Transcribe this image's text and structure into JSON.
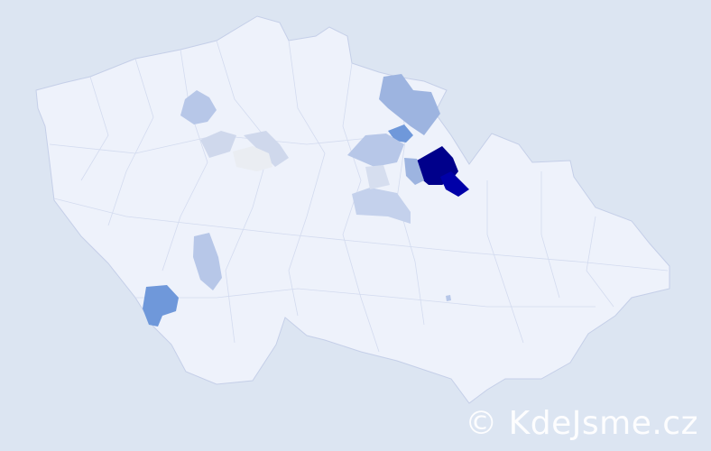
{
  "map": {
    "background_color": "#dce5f2",
    "base_fill": "#eef2fb",
    "border_color": "#c5cfe8",
    "regions": [
      {
        "level": "highest",
        "color": "#00008b"
      },
      {
        "level": "high",
        "color": "#0000b0"
      },
      {
        "level": "medium",
        "color": "#6f98da"
      },
      {
        "level": "medium-low",
        "color": "#9db4e0"
      },
      {
        "level": "low",
        "color": "#b7c7e8"
      },
      {
        "level": "very-low",
        "color": "#cfd8ec"
      },
      {
        "level": "minimal",
        "color": "#eaedf2"
      }
    ]
  },
  "watermark": {
    "text": "© KdeJsme.cz"
  }
}
